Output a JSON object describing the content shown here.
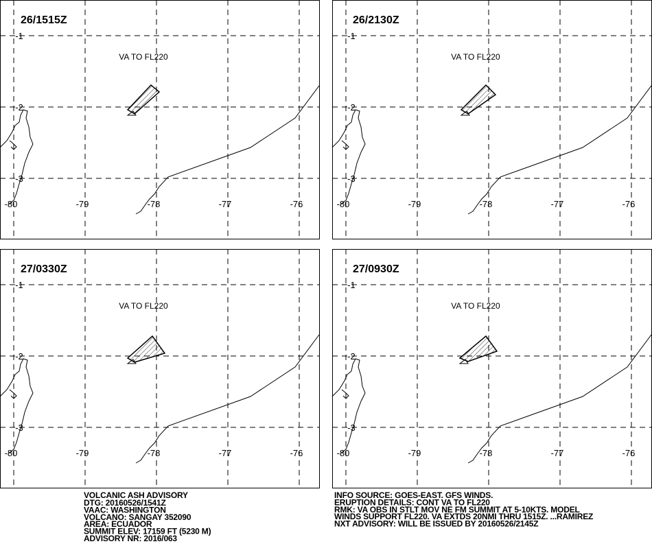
{
  "title": "VOLCANIC ASH ADVISORY",
  "panels": [
    {
      "time": "26/1515Z",
      "label": "VA TO FL220"
    },
    {
      "time": "26/2130Z",
      "label": "VA TO FL220"
    },
    {
      "time": "27/0330Z",
      "label": "VA TO FL220"
    },
    {
      "time": "27/0930Z",
      "label": "VA TO FL220"
    }
  ],
  "lon_ticks": [
    -80,
    -79,
    -78,
    -77,
    -76
  ],
  "lat_ticks": [
    -1,
    -2,
    -3
  ],
  "advisory_left": [
    "DTG: 20160526/1541Z",
    "VAAC: WASHINGTON",
    "VOLCANO: SANGAY 352090",
    "AREA: ECUADOR",
    "SUMMIT ELEV: 17159 FT (5230 M)",
    "ADVISORY NR: 2016/063"
  ],
  "advisory_right": [
    "INFO SOURCE: GOES-EAST. GFS WINDS.",
    "ERUPTION DETAILS: CONT VA TO FL220",
    "RMK: VA OBS IN STLT MOV NE FM SUMMIT AT 5-10KTS. MODEL",
    "WINDS SUPPORT FL220. VA EXTDS 20NMI THRU 1515Z. ...RAMIREZ",
    "NXT ADVISORY: WILL BE ISSUED BY 20160526/2145Z"
  ]
}
